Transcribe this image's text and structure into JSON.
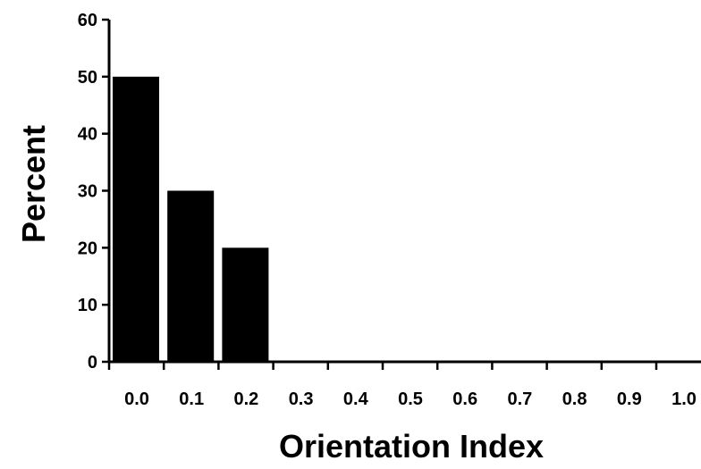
{
  "chart_data": {
    "type": "bar",
    "title": "",
    "xlabel": "Orientation Index",
    "ylabel": "Percent",
    "categories": [
      "0.0",
      "0.1",
      "0.2",
      "0.3",
      "0.4",
      "0.5",
      "0.6",
      "0.7",
      "0.8",
      "0.9",
      "1.0"
    ],
    "values": [
      50,
      30,
      20,
      0,
      0,
      0,
      0,
      0,
      0,
      0,
      0
    ],
    "ylim": [
      0,
      60
    ],
    "yticks": [
      "0",
      "10",
      "20",
      "30",
      "40",
      "50",
      "60"
    ],
    "grid": false,
    "legend": "none",
    "colors": {
      "bar": "#000000",
      "axis": "#000000"
    }
  }
}
